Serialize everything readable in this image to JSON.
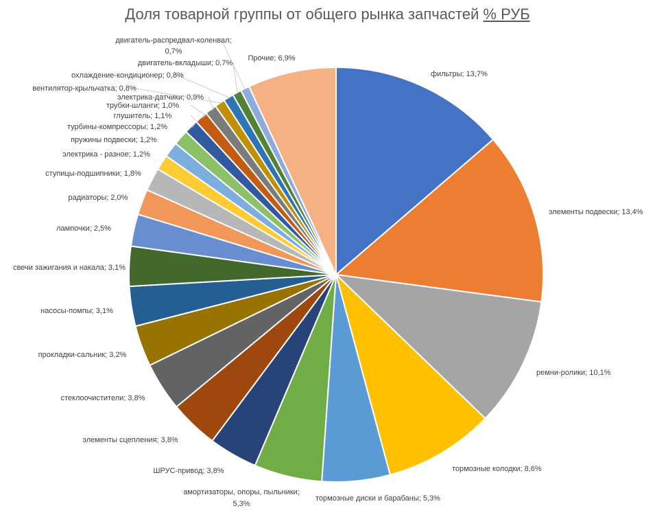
{
  "chart_data": {
    "type": "pie",
    "title_main": "Доля товарной группы от общего рынка запчастей",
    "title_unit": "% РУБ",
    "slices": [
      {
        "label": "фильтры; 13,7%",
        "value": 13.7,
        "color": "#4472C4"
      },
      {
        "label": "элементы подвески; 13,4%",
        "value": 13.4,
        "color": "#ED7D31"
      },
      {
        "label": "ремни-ролики; 10,1%",
        "value": 10.1,
        "color": "#A5A5A5"
      },
      {
        "label": "тормозные колодки; 8,6%",
        "value": 8.6,
        "color": "#FFC000"
      },
      {
        "label": "тормозные диски и барабаны; 5,3%",
        "value": 5.3,
        "color": "#5B9BD5"
      },
      {
        "label": "амортизаторы, опоры, пыльники;",
        "label2": "5,3%",
        "value": 5.3,
        "color": "#70AD47"
      },
      {
        "label": "ШРУС-привод; 3,8%",
        "value": 3.8,
        "color": "#264478"
      },
      {
        "label": "элементы сцепления; 3,8%",
        "value": 3.8,
        "color": "#9E480E"
      },
      {
        "label": "стеклоочистители; 3,8%",
        "value": 3.8,
        "color": "#636363"
      },
      {
        "label": "прокладки-сальник; 3,2%",
        "value": 3.2,
        "color": "#997300"
      },
      {
        "label": "насосы-помпы; 3,1%",
        "value": 3.1,
        "color": "#255E91"
      },
      {
        "label": "свечи зажигания и накала; 3,1%",
        "value": 3.1,
        "color": "#43682B"
      },
      {
        "label": "лампочки; 2,5%",
        "value": 2.5,
        "color": "#698ED0"
      },
      {
        "label": "радиаторы; 2,0%",
        "value": 2.0,
        "color": "#F1975A"
      },
      {
        "label": "ступицы-подшипники; 1,8%",
        "value": 1.8,
        "color": "#B7B7B7"
      },
      {
        "label": "электрика - разное; 1,2%",
        "value": 1.2,
        "color": "#FFCD33"
      },
      {
        "label": "пружины подвески; 1,2%",
        "value": 1.2,
        "color": "#7CAFDD"
      },
      {
        "label": "турбины-компрессоры; 1,2%",
        "value": 1.2,
        "color": "#8CC168"
      },
      {
        "label": "глушитель; 1,1%",
        "value": 1.1,
        "color": "#335AA1"
      },
      {
        "label": "трубки-шланги; 1,0%",
        "value": 1.0,
        "color": "#C55A11"
      },
      {
        "label": "электрика-датчики; 0,9%",
        "value": 0.9,
        "color": "#7B7B7B"
      },
      {
        "label": "вентилятор-крыльчатка; 0,8%",
        "value": 0.8,
        "color": "#BF9000"
      },
      {
        "label": "охлаждение-кондиционер; 0,8%",
        "value": 0.8,
        "color": "#2E75B6"
      },
      {
        "label": "двигатель-вкладыши; 0,7%",
        "value": 0.7,
        "color": "#548235"
      },
      {
        "label": "двигатель-распредвал-коленвал;",
        "label2": "0,7%",
        "value": 0.7,
        "color": "#8FAADC"
      },
      {
        "label": "Прочие; 6,9%",
        "value": 6.9,
        "color": "#F4B183"
      }
    ]
  }
}
